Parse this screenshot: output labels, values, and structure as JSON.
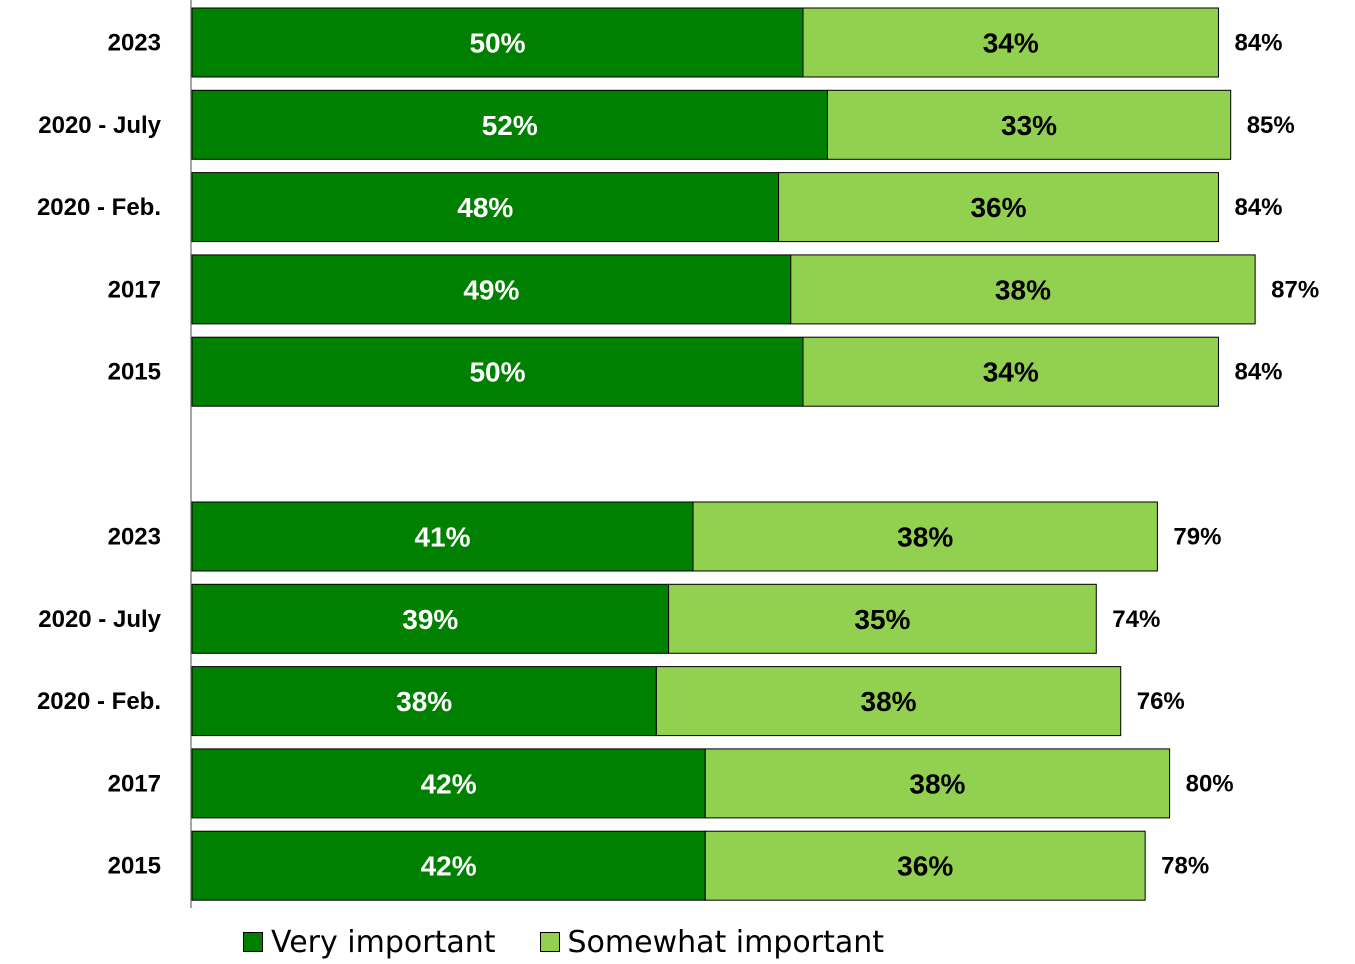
{
  "chart_data": {
    "type": "bar",
    "orientation": "horizontal",
    "stacked": true,
    "title": "",
    "xlabel": "",
    "ylabel": "",
    "grid": false,
    "legend_position": "bottom",
    "colors": {
      "very_important": "#008000",
      "somewhat_important": "#92D050"
    },
    "legend": [
      "Very important",
      "Somewhat important"
    ],
    "groups": [
      {
        "categories": [
          "2023",
          "2020 - July",
          "2020 - Feb.",
          "2017",
          "2015"
        ],
        "series": [
          {
            "name": "Very important",
            "values": [
              50,
              52,
              48,
              49,
              50
            ]
          },
          {
            "name": "Somewhat important",
            "values": [
              34,
              33,
              36,
              38,
              34
            ]
          }
        ],
        "totals": [
          84,
          85,
          84,
          87,
          84
        ]
      },
      {
        "categories": [
          "2023",
          "2020 - July",
          "2020 - Feb.",
          "2017",
          "2015"
        ],
        "series": [
          {
            "name": "Very important",
            "values": [
              41,
              39,
              38,
              42,
              42
            ]
          },
          {
            "name": "Somewhat important",
            "values": [
              38,
              35,
              38,
              38,
              36
            ]
          }
        ],
        "totals": [
          79,
          74,
          76,
          80,
          78
        ]
      }
    ]
  }
}
